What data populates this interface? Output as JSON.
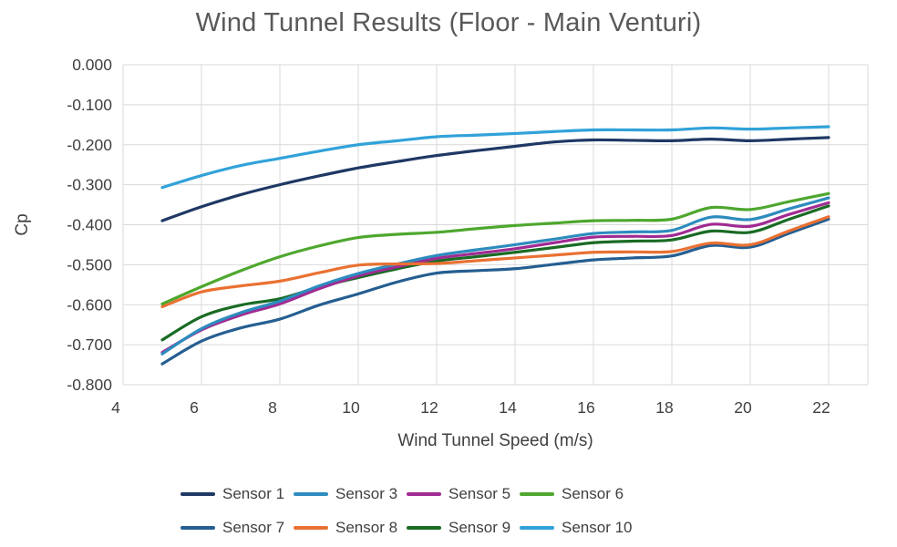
{
  "chart_data": {
    "type": "line",
    "title": "Wind Tunnel Results (Floor - Main Venturi)",
    "xlabel": "Wind Tunnel Speed (m/s)",
    "ylabel": "Cp",
    "xlim": [
      4,
      23
    ],
    "ylim": [
      -0.8,
      0
    ],
    "grid": true,
    "smooth": true,
    "legend_position": "bottom",
    "xticks": [
      4,
      6,
      8,
      10,
      12,
      14,
      16,
      18,
      20,
      22
    ],
    "xtick_labels": [
      "4",
      "6",
      "8",
      "10",
      "12",
      "14",
      "16",
      "18",
      "20",
      "22"
    ],
    "ytick_values": [
      0,
      -0.1,
      -0.2,
      -0.3,
      -0.4,
      -0.5,
      -0.6,
      -0.7,
      -0.8
    ],
    "ytick_labels": [
      "0.000",
      "-0.100",
      "-0.200",
      "-0.300",
      "-0.400",
      "-0.500",
      "-0.600",
      "-0.700",
      "-0.800"
    ],
    "x": [
      5,
      6,
      7,
      8,
      9,
      10,
      11,
      12,
      13,
      14,
      15,
      16,
      17,
      18,
      19,
      20,
      21,
      22
    ],
    "series": [
      {
        "name": "Sensor 1",
        "color": "#1F3864",
        "values": [
          -0.39,
          -0.355,
          -0.325,
          -0.3,
          -0.278,
          -0.258,
          -0.242,
          -0.227,
          -0.215,
          -0.204,
          -0.193,
          -0.188,
          -0.189,
          -0.19,
          -0.186,
          -0.19,
          -0.186,
          -0.182
        ]
      },
      {
        "name": "Sensor 3",
        "color": "#2D8CBE",
        "values": [
          -0.723,
          -0.66,
          -0.62,
          -0.591,
          -0.553,
          -0.522,
          -0.498,
          -0.477,
          -0.463,
          -0.45,
          -0.436,
          -0.422,
          -0.418,
          -0.414,
          -0.381,
          -0.387,
          -0.36,
          -0.333
        ]
      },
      {
        "name": "Sensor 5",
        "color": "#A02B93",
        "values": [
          -0.719,
          -0.663,
          -0.626,
          -0.598,
          -0.56,
          -0.528,
          -0.505,
          -0.484,
          -0.472,
          -0.46,
          -0.445,
          -0.431,
          -0.429,
          -0.427,
          -0.399,
          -0.404,
          -0.374,
          -0.345
        ]
      },
      {
        "name": "Sensor 6",
        "color": "#4EA72E",
        "values": [
          -0.598,
          -0.555,
          -0.515,
          -0.48,
          -0.453,
          -0.432,
          -0.424,
          -0.419,
          -0.41,
          -0.402,
          -0.396,
          -0.39,
          -0.389,
          -0.386,
          -0.357,
          -0.362,
          -0.342,
          -0.322
        ]
      },
      {
        "name": "Sensor 7",
        "color": "#255E91",
        "values": [
          -0.748,
          -0.691,
          -0.658,
          -0.636,
          -0.601,
          -0.573,
          -0.543,
          -0.521,
          -0.515,
          -0.51,
          -0.499,
          -0.488,
          -0.483,
          -0.478,
          -0.452,
          -0.456,
          -0.421,
          -0.386
        ]
      },
      {
        "name": "Sensor 8",
        "color": "#E97132",
        "values": [
          -0.605,
          -0.568,
          -0.553,
          -0.541,
          -0.52,
          -0.501,
          -0.498,
          -0.497,
          -0.49,
          -0.483,
          -0.476,
          -0.469,
          -0.468,
          -0.467,
          -0.446,
          -0.45,
          -0.415,
          -0.38
        ]
      },
      {
        "name": "Sensor 9",
        "color": "#196B24",
        "values": [
          -0.688,
          -0.63,
          -0.601,
          -0.585,
          -0.556,
          -0.532,
          -0.51,
          -0.491,
          -0.48,
          -0.469,
          -0.457,
          -0.445,
          -0.441,
          -0.438,
          -0.416,
          -0.419,
          -0.386,
          -0.353
        ]
      },
      {
        "name": "Sensor 10",
        "color": "#31A2D9",
        "values": [
          -0.307,
          -0.277,
          -0.252,
          -0.234,
          -0.216,
          -0.2,
          -0.19,
          -0.18,
          -0.176,
          -0.172,
          -0.167,
          -0.163,
          -0.163,
          -0.163,
          -0.158,
          -0.161,
          -0.158,
          -0.155
        ]
      }
    ],
    "z_order": [
      4,
      6,
      2,
      1,
      5,
      3,
      0,
      7
    ],
    "grid_color": "#D9D9D9",
    "tick_color": "#404040",
    "title_color": "#595959"
  }
}
